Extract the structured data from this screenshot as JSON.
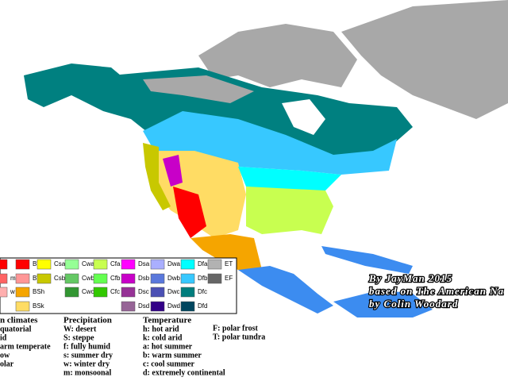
{
  "legend": {
    "columns": [
      [
        {
          "color": "#ff0000"
        },
        {
          "code": "m",
          "color": "#ff6464"
        },
        {
          "code": "w",
          "color": "#ffafaf"
        },
        null
      ],
      [
        {
          "code": "BWh",
          "color": "#ff0000"
        },
        {
          "code": "BWk",
          "color": "#ff9696"
        },
        {
          "code": "BSh",
          "color": "#f5a500"
        },
        {
          "code": "BSk",
          "color": "#ffdc64"
        }
      ],
      [
        {
          "code": "Csa",
          "color": "#ffff00"
        },
        {
          "code": "Csb",
          "color": "#c8c800"
        },
        null,
        null
      ],
      [
        {
          "code": "Cwa",
          "color": "#96ff96"
        },
        {
          "code": "Cwb",
          "color": "#64c864"
        },
        {
          "code": "Cwc",
          "color": "#329632"
        },
        null
      ],
      [
        {
          "code": "Cfa",
          "color": "#c8ff50"
        },
        {
          "code": "Cfb",
          "color": "#64ff50"
        },
        {
          "code": "Cfc",
          "color": "#32c800"
        },
        null
      ],
      [
        {
          "code": "Dsa",
          "color": "#ff00ff"
        },
        {
          "code": "Dsb",
          "color": "#c800c8"
        },
        {
          "code": "Dsc",
          "color": "#963296"
        },
        {
          "code": "Dsd",
          "color": "#966496"
        }
      ],
      [
        {
          "code": "Dwa",
          "color": "#aaafff"
        },
        {
          "code": "Dwb",
          "color": "#5a78dc"
        },
        {
          "code": "Dwc",
          "color": "#4b50b4"
        },
        {
          "code": "Dwd",
          "color": "#320087"
        }
      ],
      [
        {
          "code": "Dfa",
          "color": "#00ffff"
        },
        {
          "code": "Dfb",
          "color": "#37c8ff"
        },
        {
          "code": "Dfc",
          "color": "#007d7d"
        },
        {
          "code": "Dfd",
          "color": "#00465f"
        }
      ],
      [
        {
          "code": "ET",
          "color": "#b2b2b2"
        },
        {
          "code": "EF",
          "color": "#666666"
        },
        null,
        null
      ]
    ]
  },
  "key": {
    "main": {
      "title": "n climates",
      "lines": [
        "quatorial",
        "id",
        "arm temperate",
        "ow",
        "olar"
      ]
    },
    "precipitation": {
      "title": "Precipitation",
      "lines": [
        "W: desert",
        "S:  steppe",
        "f: fully humid",
        "s: summer dry",
        "w: winter dry",
        "m: monsoonal"
      ]
    },
    "temperature": {
      "title": "Temperature",
      "lines": [
        "h: hot arid",
        "k: cold arid",
        "a: hot summer",
        "b: warm summer",
        "c: cool summer",
        "d: extremely continental"
      ]
    },
    "polar": {
      "lines": [
        "F: polar frost",
        "T: polar tundra"
      ]
    }
  },
  "credits": [
    "By JayMan 2015",
    "based on The American Na",
    "by Colin Woodard"
  ]
}
